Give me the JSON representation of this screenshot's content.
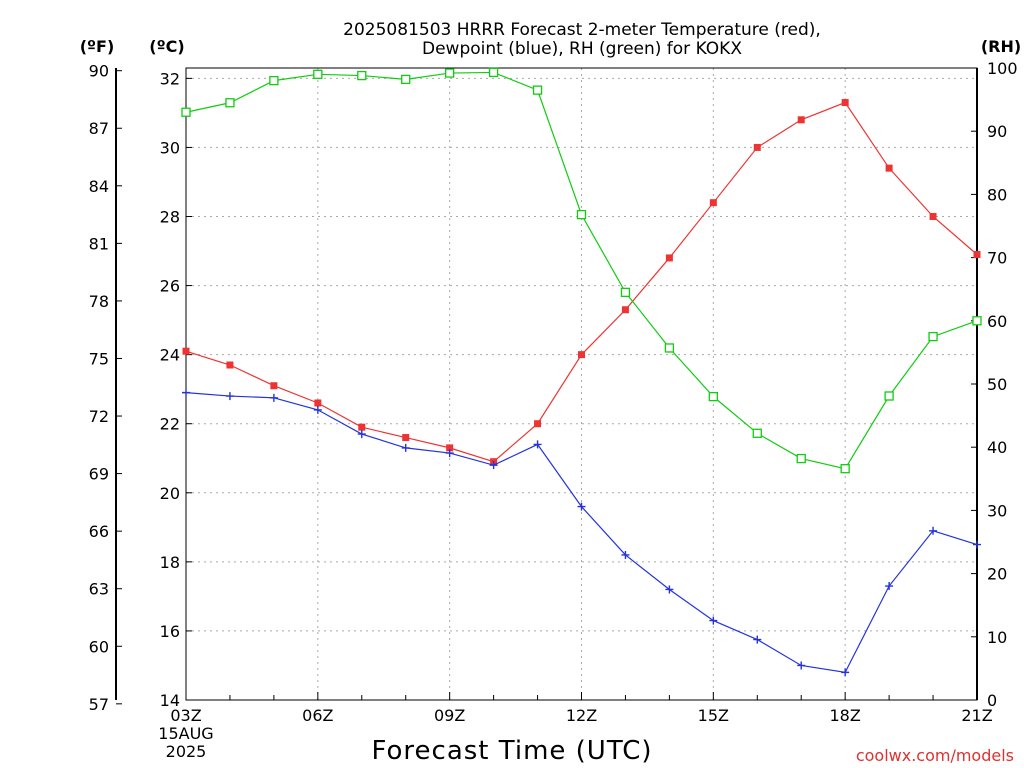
{
  "title_lines": [
    "2025081503 HRRR Forecast 2-meter Temperature (red),",
    "Dewpoint (blue), RH (green) for KOKX"
  ],
  "unit_labels": {
    "fahrenheit": "(ºF)",
    "celsius": "(ºC)",
    "rh": "(RH)"
  },
  "credit": "coolwx.com/models",
  "colors": {
    "temperature": "#ee3333",
    "dewpoint": "#2233dd",
    "rh": "#11cc11",
    "grid": "#aaaaaa",
    "credit": "#e03030"
  },
  "chart_data": {
    "type": "line",
    "grid": true,
    "xlabel": "Forecast Time (UTC)",
    "x": [
      "03Z",
      "04Z",
      "05Z",
      "06Z",
      "07Z",
      "08Z",
      "09Z",
      "10Z",
      "11Z",
      "12Z",
      "13Z",
      "14Z",
      "15Z",
      "16Z",
      "17Z",
      "18Z",
      "19Z",
      "20Z",
      "21Z"
    ],
    "x_tick_labels": [
      {
        "at": "03Z",
        "lines": [
          "03Z",
          "15AUG",
          "2025"
        ]
      },
      {
        "at": "06Z",
        "lines": [
          "06Z"
        ]
      },
      {
        "at": "09Z",
        "lines": [
          "09Z"
        ]
      },
      {
        "at": "12Z",
        "lines": [
          "12Z"
        ]
      },
      {
        "at": "15Z",
        "lines": [
          "15Z"
        ]
      },
      {
        "at": "18Z",
        "lines": [
          "18Z"
        ]
      },
      {
        "at": "21Z",
        "lines": [
          "21Z"
        ]
      }
    ],
    "y_celsius": {
      "range": [
        14,
        32.3
      ],
      "ticks": [
        14,
        16,
        18,
        20,
        22,
        24,
        26,
        28,
        30,
        32
      ]
    },
    "y_fahrenheit": {
      "range": [
        57.2,
        90.14
      ],
      "ticks": [
        57,
        60,
        63,
        66,
        69,
        72,
        75,
        78,
        81,
        84,
        87,
        90
      ]
    },
    "y_rh": {
      "range": [
        0,
        100
      ],
      "ticks": [
        0,
        10,
        20,
        30,
        40,
        50,
        60,
        70,
        80,
        90,
        100
      ]
    },
    "series": [
      {
        "axis": "celsius",
        "marker": "filled-square",
        "values": [
          24.1,
          23.7,
          23.1,
          22.6,
          21.9,
          21.6,
          21.3,
          20.9,
          22.0,
          24.0,
          25.3,
          26.8,
          28.4,
          30.0,
          30.8,
          31.3,
          29.4,
          28.0,
          26.9
        ]
      },
      {
        "axis": "celsius",
        "marker": "plus",
        "values": [
          22.9,
          22.8,
          22.75,
          22.4,
          21.7,
          21.3,
          21.15,
          20.8,
          21.4,
          19.6,
          18.2,
          17.2,
          16.3,
          15.75,
          15.0,
          14.8,
          17.3,
          18.9,
          18.5
        ]
      },
      {
        "axis": "rh",
        "marker": "open-square",
        "values": [
          93,
          94.5,
          98,
          99,
          98.8,
          98.2,
          99.2,
          99.3,
          96.5,
          76.8,
          64.5,
          55.7,
          48,
          42.2,
          38.2,
          36.6,
          48.1,
          57.5,
          60
        ]
      }
    ]
  }
}
